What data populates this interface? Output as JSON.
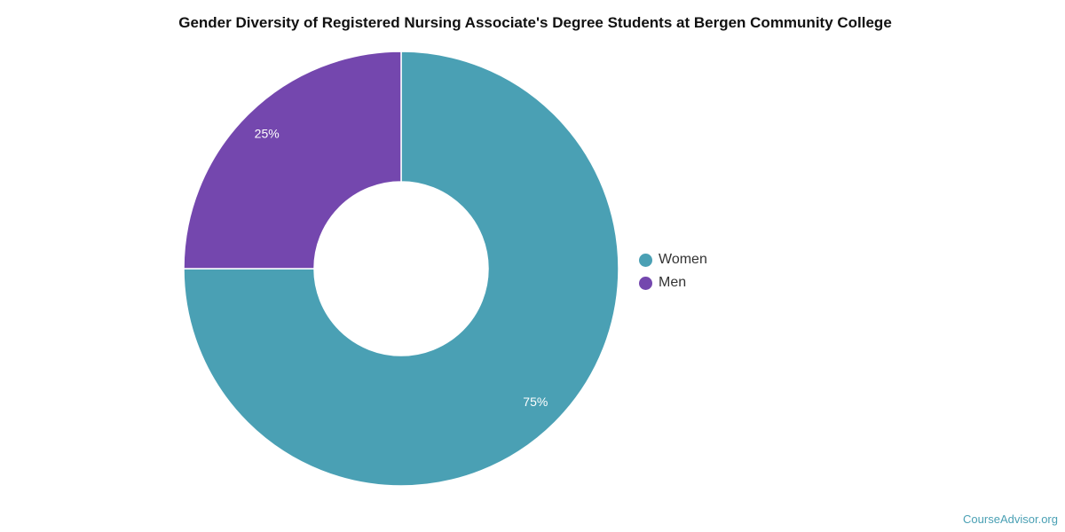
{
  "chart_data": {
    "type": "pie",
    "title": "Gender Diversity of Registered Nursing Associate's Degree Students at Bergen Community College",
    "donut": true,
    "start_angle_deg": 0,
    "categories": [
      "Women",
      "Men"
    ],
    "values": [
      75,
      25
    ],
    "labels": [
      "75%",
      "25%"
    ],
    "colors": [
      "#4aa0b4",
      "#7447ae"
    ],
    "legend_position": "right"
  },
  "watermark": "CourseAdvisor.org"
}
